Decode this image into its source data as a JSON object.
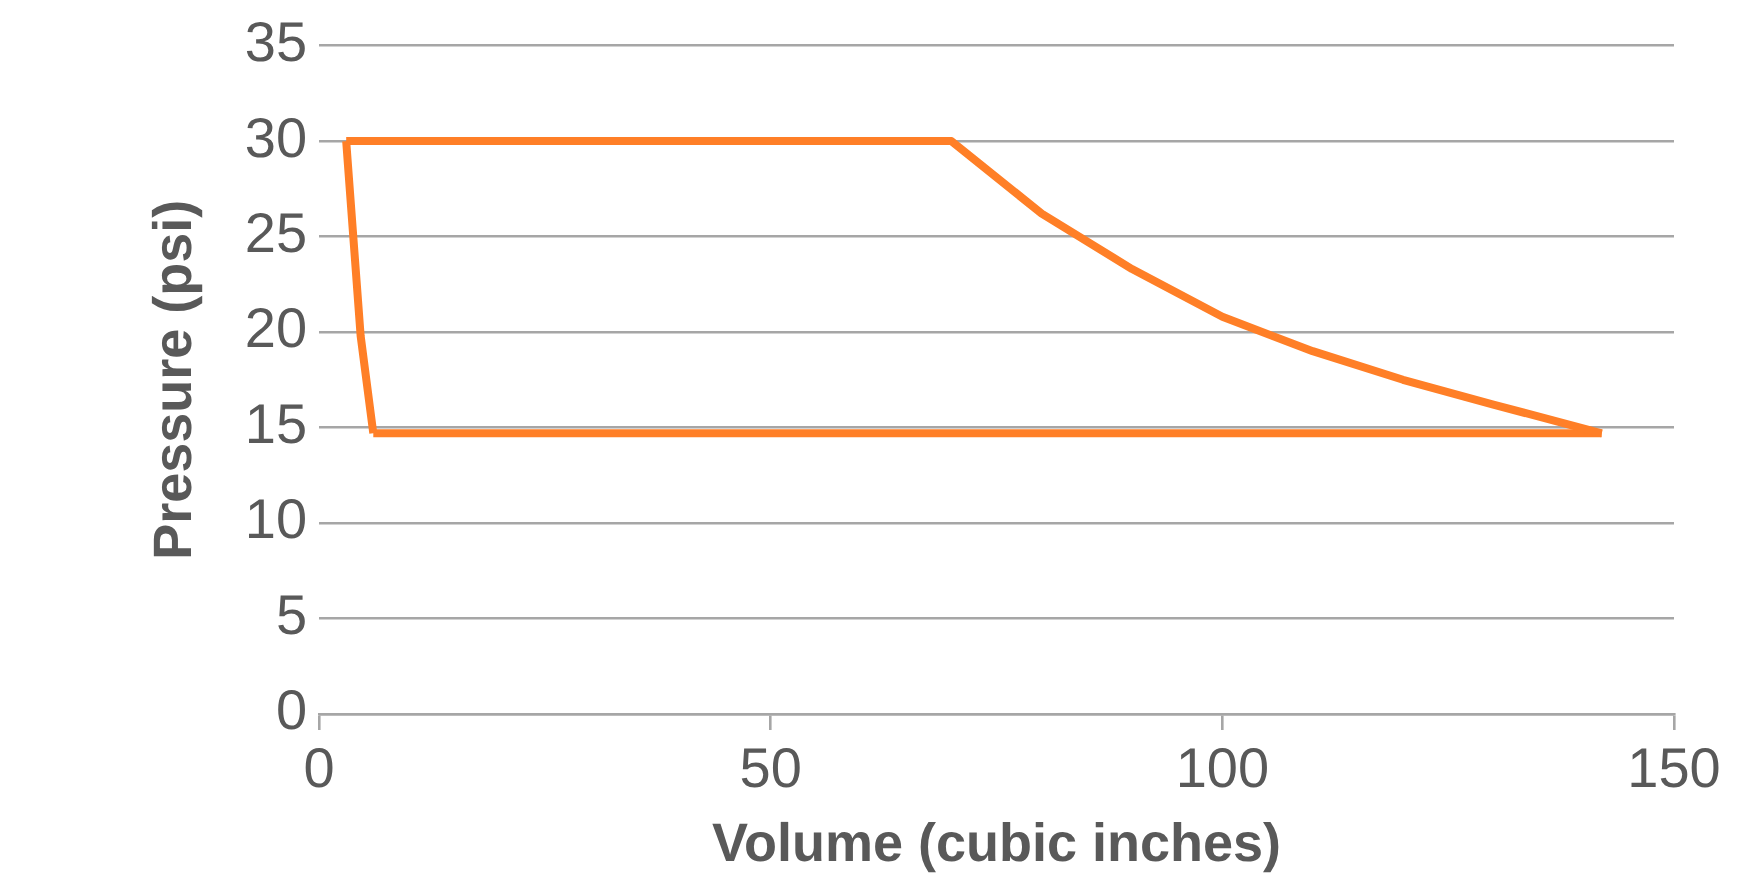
{
  "chart_data": {
    "type": "line",
    "xlabel": "Volume (cubic inches)",
    "ylabel": "Pressure (psi)",
    "series": [
      {
        "color": "#ff7f27",
        "x": [
          3,
          4.6,
          6
        ],
        "values": [
          30,
          19.8,
          14.7
        ]
      },
      {
        "color": "#ff7f27",
        "x": [
          3,
          70,
          80,
          90,
          100,
          110,
          120,
          130,
          142
        ],
        "values": [
          30,
          30,
          26.2,
          23.3,
          20.8,
          19,
          17.5,
          16.2,
          14.7
        ]
      },
      {
        "color": "#ff7f27",
        "x": [
          6,
          142
        ],
        "values": [
          14.7,
          14.7
        ]
      }
    ],
    "xlim": [
      0,
      150
    ],
    "xticks": [
      0,
      50,
      100,
      150
    ],
    "ylim": [
      0,
      35
    ],
    "yticks": [
      0,
      5,
      10,
      15,
      20,
      25,
      30,
      35
    ],
    "grid": "y",
    "legend": false,
    "marker": "none",
    "line_style": "solid"
  }
}
